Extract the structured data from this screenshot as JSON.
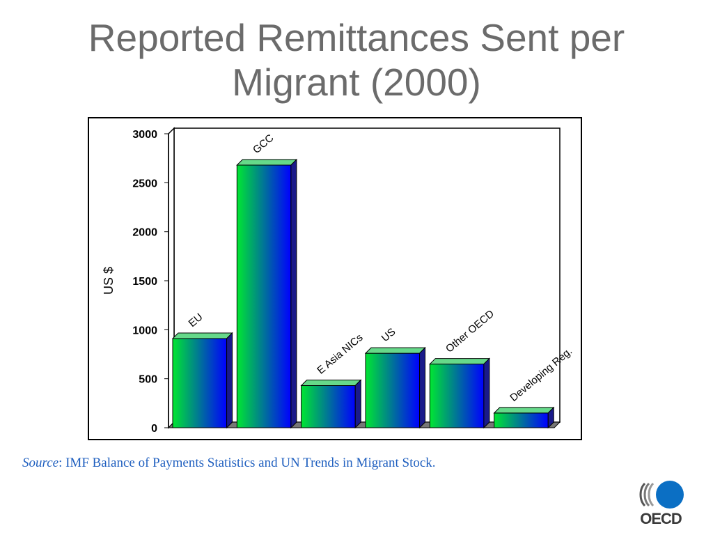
{
  "slide": {
    "title_line1": "Reported Remittances Sent per",
    "title_line2": "Migrant (2000)"
  },
  "source": {
    "label": "Source",
    "text": ": IMF Balance of Payments Statistics and UN Trends in Migrant Stock."
  },
  "logo": {
    "text": "OECD"
  },
  "colors": {
    "bar_left": "#00e632",
    "bar_right": "#0000ff",
    "bar_top": "#66d98a",
    "bar_side": "#1a1a8a",
    "source_text": "#1f5fbf",
    "title_text": "#6b6b6b",
    "logo_circle": "#0b6fc4"
  },
  "chart_data": {
    "type": "bar",
    "categories": [
      "EU",
      "GCC",
      "E Asia NICs",
      "US",
      "Other OECD",
      "Developing Reg."
    ],
    "values": [
      910,
      2680,
      430,
      760,
      650,
      150
    ],
    "title": "",
    "xlabel": "",
    "ylabel": "US $",
    "ylim": [
      0,
      3000
    ],
    "yticks": [
      0,
      500,
      1000,
      1500,
      2000,
      2500,
      3000
    ],
    "grid": false,
    "style": "3d-gradient"
  }
}
